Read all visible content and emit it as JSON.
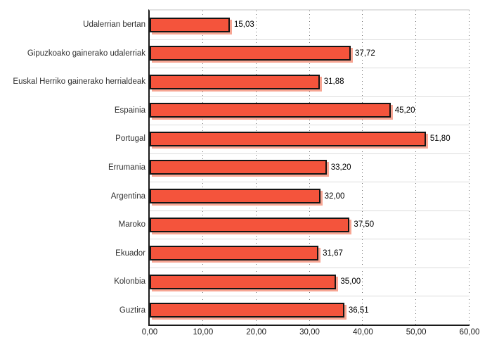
{
  "chart_data": {
    "type": "bar",
    "orientation": "horizontal",
    "title": "",
    "xlabel": "",
    "ylabel": "",
    "xlim": [
      0,
      60
    ],
    "x_ticks": [
      0,
      10,
      20,
      30,
      40,
      50,
      60
    ],
    "x_tick_labels": [
      "0,00",
      "10,00",
      "20,00",
      "30,00",
      "40,00",
      "50,00",
      "60,00"
    ],
    "grid": "vertical-dotted",
    "legend": "none",
    "categories": [
      "Udalerrian bertan",
      "Gipuzkoako gainerako udalerriak",
      "Euskal Herriko gainerako herrialdeak",
      "Espainia",
      "Portugal",
      "Errumania",
      "Argentina",
      "Maroko",
      "Ekuador",
      "Kolonbia",
      "Guztira"
    ],
    "values": [
      15.03,
      37.72,
      31.88,
      45.2,
      51.8,
      33.2,
      32.0,
      37.5,
      31.67,
      35.0,
      36.51
    ],
    "value_labels": [
      "15,03",
      "37,72",
      "31,88",
      "45,20",
      "51,80",
      "33,20",
      "32,00",
      "37,50",
      "31,67",
      "35,00",
      "36,51"
    ],
    "colors": {
      "bar_fill": "#f4543c",
      "bar_border": "#141414",
      "bar_shadow": "#f7a694",
      "axis": "#1a1a1a",
      "grid_dots": "#6b6b6b",
      "row_separator": "#dcdcdc",
      "plot_top_border": "#e2e2e2",
      "category_text": "#2e2e2e",
      "value_text": "#000000"
    }
  }
}
